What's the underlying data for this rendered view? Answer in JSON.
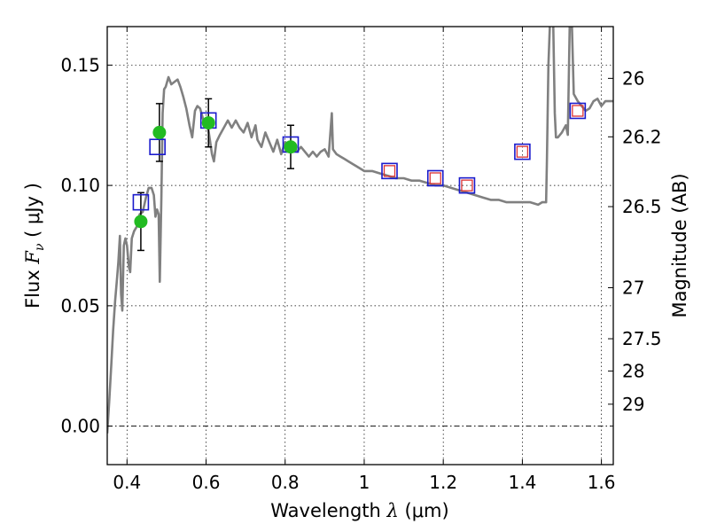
{
  "chart_data": {
    "type": "scatter",
    "xlabel": {
      "prefix": "Wavelength  ",
      "symbol": "λ",
      "unit": " (μm)"
    },
    "ylabel": {
      "prefix": "Flux  ",
      "symbol": "F",
      "subscript": "ν",
      "unit": "  ( μJy )"
    },
    "y2label": "Magnitude (AB)",
    "xlim": [
      0.35,
      1.63
    ],
    "ylim": [
      -0.016,
      0.166
    ],
    "xticks": [
      0.4,
      0.6,
      0.8,
      1.0,
      1.2,
      1.4,
      1.6
    ],
    "xtick_labels": [
      "0.4",
      "0.6",
      "0.8",
      "1",
      "1.2",
      "1.4",
      "1.6"
    ],
    "yticks": [
      0.0,
      0.05,
      0.1,
      0.15
    ],
    "ytick_labels": [
      "0.00",
      "0.05",
      "0.10",
      "0.15"
    ],
    "y2ticks": [
      {
        "label": "26",
        "flux": 0.1445
      },
      {
        "label": "26.2",
        "flux": 0.1202
      },
      {
        "label": "26.5",
        "flux": 0.0912
      },
      {
        "label": "27",
        "flux": 0.0575
      },
      {
        "label": "27.5",
        "flux": 0.0363
      },
      {
        "label": "28",
        "flux": 0.0229
      },
      {
        "label": "29",
        "flux": 0.0091
      }
    ],
    "grid": true,
    "zero_line": 0.0,
    "colors": {
      "model": "#808080",
      "observed": "#22bb22",
      "synthetic_box": "#1a1acc",
      "inner_box": "#dd3333"
    },
    "series": [
      {
        "kind": "model_spectrum",
        "points": [
          [
            0.35,
            -0.003
          ],
          [
            0.355,
            0.01
          ],
          [
            0.36,
            0.025
          ],
          [
            0.365,
            0.04
          ],
          [
            0.37,
            0.052
          ],
          [
            0.375,
            0.062
          ],
          [
            0.378,
            0.068
          ],
          [
            0.382,
            0.079
          ],
          [
            0.385,
            0.055
          ],
          [
            0.388,
            0.048
          ],
          [
            0.392,
            0.075
          ],
          [
            0.396,
            0.078
          ],
          [
            0.4,
            0.075
          ],
          [
            0.405,
            0.066
          ],
          [
            0.408,
            0.064
          ],
          [
            0.412,
            0.078
          ],
          [
            0.418,
            0.081
          ],
          [
            0.425,
            0.083
          ],
          [
            0.432,
            0.088
          ],
          [
            0.44,
            0.089
          ],
          [
            0.448,
            0.095
          ],
          [
            0.455,
            0.099
          ],
          [
            0.462,
            0.099
          ],
          [
            0.468,
            0.096
          ],
          [
            0.472,
            0.087
          ],
          [
            0.476,
            0.09
          ],
          [
            0.48,
            0.088
          ],
          [
            0.483,
            0.06
          ],
          [
            0.487,
            0.095
          ],
          [
            0.49,
            0.13
          ],
          [
            0.494,
            0.14
          ],
          [
            0.498,
            0.141
          ],
          [
            0.505,
            0.145
          ],
          [
            0.512,
            0.142
          ],
          [
            0.52,
            0.143
          ],
          [
            0.528,
            0.144
          ],
          [
            0.535,
            0.141
          ],
          [
            0.542,
            0.137
          ],
          [
            0.55,
            0.132
          ],
          [
            0.558,
            0.125
          ],
          [
            0.565,
            0.12
          ],
          [
            0.572,
            0.131
          ],
          [
            0.578,
            0.133
          ],
          [
            0.585,
            0.132
          ],
          [
            0.595,
            0.126
          ],
          [
            0.605,
            0.124
          ],
          [
            0.615,
            0.113
          ],
          [
            0.62,
            0.11
          ],
          [
            0.626,
            0.118
          ],
          [
            0.635,
            0.121
          ],
          [
            0.645,
            0.124
          ],
          [
            0.655,
            0.127
          ],
          [
            0.665,
            0.124
          ],
          [
            0.675,
            0.127
          ],
          [
            0.685,
            0.124
          ],
          [
            0.695,
            0.122
          ],
          [
            0.705,
            0.126
          ],
          [
            0.715,
            0.12
          ],
          [
            0.725,
            0.125
          ],
          [
            0.73,
            0.119
          ],
          [
            0.74,
            0.116
          ],
          [
            0.75,
            0.122
          ],
          [
            0.76,
            0.118
          ],
          [
            0.77,
            0.114
          ],
          [
            0.78,
            0.119
          ],
          [
            0.79,
            0.113
          ],
          [
            0.8,
            0.118
          ],
          [
            0.81,
            0.117
          ],
          [
            0.82,
            0.116
          ],
          [
            0.83,
            0.114
          ],
          [
            0.84,
            0.116
          ],
          [
            0.85,
            0.114
          ],
          [
            0.86,
            0.112
          ],
          [
            0.87,
            0.114
          ],
          [
            0.88,
            0.112
          ],
          [
            0.89,
            0.114
          ],
          [
            0.9,
            0.115
          ],
          [
            0.91,
            0.112
          ],
          [
            0.915,
            0.123
          ],
          [
            0.918,
            0.13
          ],
          [
            0.921,
            0.115
          ],
          [
            0.93,
            0.113
          ],
          [
            0.94,
            0.112
          ],
          [
            0.95,
            0.111
          ],
          [
            0.96,
            0.11
          ],
          [
            0.97,
            0.109
          ],
          [
            0.98,
            0.108
          ],
          [
            0.99,
            0.107
          ],
          [
            1.0,
            0.106
          ],
          [
            1.02,
            0.106
          ],
          [
            1.04,
            0.105
          ],
          [
            1.06,
            0.104
          ],
          [
            1.08,
            0.103
          ],
          [
            1.1,
            0.103
          ],
          [
            1.12,
            0.102
          ],
          [
            1.14,
            0.102
          ],
          [
            1.16,
            0.101
          ],
          [
            1.18,
            0.1
          ],
          [
            1.2,
            0.1
          ],
          [
            1.22,
            0.099
          ],
          [
            1.24,
            0.098
          ],
          [
            1.26,
            0.097
          ],
          [
            1.28,
            0.096
          ],
          [
            1.3,
            0.095
          ],
          [
            1.32,
            0.094
          ],
          [
            1.34,
            0.094
          ],
          [
            1.36,
            0.093
          ],
          [
            1.38,
            0.093
          ],
          [
            1.4,
            0.093
          ],
          [
            1.42,
            0.093
          ],
          [
            1.44,
            0.092
          ],
          [
            1.45,
            0.093
          ],
          [
            1.46,
            0.093
          ],
          [
            1.462,
            0.11
          ],
          [
            1.466,
            0.15
          ],
          [
            1.47,
            0.168
          ],
          [
            1.478,
            0.168
          ],
          [
            1.482,
            0.13
          ],
          [
            1.485,
            0.12
          ],
          [
            1.49,
            0.12
          ],
          [
            1.5,
            0.122
          ],
          [
            1.51,
            0.125
          ],
          [
            1.515,
            0.121
          ],
          [
            1.52,
            0.168
          ],
          [
            1.525,
            0.168
          ],
          [
            1.53,
            0.138
          ],
          [
            1.54,
            0.135
          ],
          [
            1.55,
            0.133
          ],
          [
            1.56,
            0.131
          ],
          [
            1.57,
            0.132
          ],
          [
            1.58,
            0.135
          ],
          [
            1.59,
            0.136
          ],
          [
            1.6,
            0.133
          ],
          [
            1.61,
            0.135
          ],
          [
            1.62,
            0.135
          ],
          [
            1.63,
            0.135
          ]
        ]
      },
      {
        "kind": "observed_photometry",
        "points": [
          {
            "x": 0.435,
            "y": 0.085,
            "err": 0.012
          },
          {
            "x": 0.482,
            "y": 0.122,
            "err": 0.012
          },
          {
            "x": 0.606,
            "y": 0.126,
            "err": 0.01
          },
          {
            "x": 0.814,
            "y": 0.116,
            "err": 0.009
          }
        ]
      },
      {
        "kind": "model_photometry",
        "points": [
          {
            "x": 0.435,
            "y": 0.093
          },
          {
            "x": 0.477,
            "y": 0.116
          },
          {
            "x": 0.606,
            "y": 0.127
          },
          {
            "x": 0.814,
            "y": 0.117
          },
          {
            "x": 1.064,
            "y": 0.106,
            "inner": true
          },
          {
            "x": 1.18,
            "y": 0.103,
            "inner": true
          },
          {
            "x": 1.26,
            "y": 0.1,
            "inner": true
          },
          {
            "x": 1.4,
            "y": 0.114,
            "inner": true
          },
          {
            "x": 1.54,
            "y": 0.131,
            "inner": true
          }
        ]
      }
    ]
  }
}
